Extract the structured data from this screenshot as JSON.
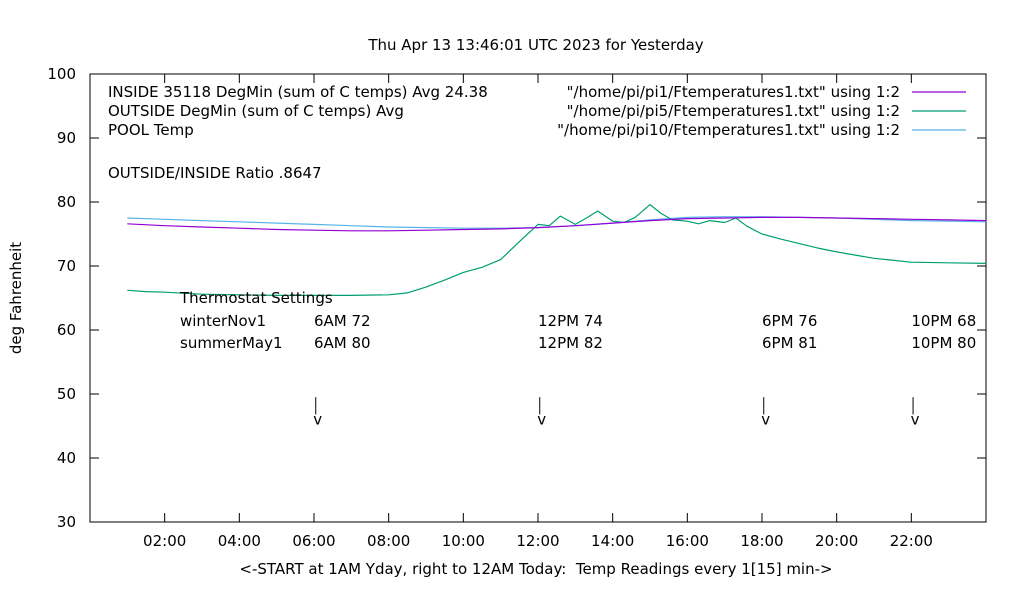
{
  "chart_data": {
    "type": "line",
    "title": "Thu Apr 13 13:46:01 UTC 2023 for Yesterday",
    "xlabel": "<-START at 1AM Yday, right to 12AM Today:  Temp Readings every 1[15] min->",
    "ylabel": "deg Fahrenheit",
    "xlim": [
      0.0,
      24.0
    ],
    "ylim": [
      30,
      100
    ],
    "x_ticks": [
      2,
      4,
      6,
      8,
      10,
      12,
      14,
      16,
      18,
      20,
      22
    ],
    "x_tick_labels": [
      "02:00",
      "04:00",
      "06:00",
      "08:00",
      "10:00",
      "12:00",
      "14:00",
      "16:00",
      "18:00",
      "20:00",
      "22:00"
    ],
    "y_ticks": [
      30,
      40,
      50,
      60,
      70,
      80,
      90,
      100
    ],
    "y_tick_labels": [
      "30",
      "40",
      "50",
      "60",
      "70",
      "80",
      "90",
      "100"
    ],
    "grid": false,
    "legend_position": "top-left",
    "legend": {
      "labels": [
        "INSIDE 35118 DegMin (sum of C temps) Avg 24.38",
        "OUTSIDE  DegMin (sum of C temps) Avg",
        "POOL Temp"
      ],
      "keys": [
        "\"/home/pi/pi1/Ftemperatures1.txt\" using 1:2",
        "\"/home/pi/pi5/Ftemperatures1.txt\" using 1:2",
        "\"/home/pi/pi10/Ftemperatures1.txt\" using 1:2"
      ],
      "ratio": "OUTSIDE/INSIDE Ratio .8647"
    },
    "series": [
      {
        "key": "\"/home/pi/pi1/Ftemperatures1.txt\" using 1:2",
        "color": "#9400d3",
        "x": [
          1.0,
          2.0,
          3.0,
          4.0,
          5.0,
          6.0,
          7.0,
          8.0,
          9.0,
          10.0,
          11.0,
          12.0,
          13.0,
          14.0,
          15.0,
          16.0,
          17.0,
          18.0,
          19.0,
          20.0,
          21.0,
          22.0,
          23.0,
          24.0
        ],
        "values": [
          76.6,
          76.3,
          76.1,
          75.9,
          75.7,
          75.6,
          75.5,
          75.5,
          75.6,
          75.7,
          75.8,
          76.0,
          76.3,
          76.7,
          77.1,
          77.4,
          77.5,
          77.6,
          77.6,
          77.5,
          77.4,
          77.3,
          77.2,
          77.1
        ]
      },
      {
        "key": "\"/home/pi/pi5/Ftemperatures1.txt\" using 1:2",
        "color": "#009e73",
        "x": [
          1.0,
          1.5,
          2.0,
          3.0,
          4.0,
          5.0,
          6.0,
          7.0,
          8.0,
          8.5,
          9.0,
          9.5,
          10.0,
          10.5,
          11.0,
          11.5,
          12.0,
          12.3,
          12.6,
          13.0,
          13.3,
          13.6,
          14.0,
          14.3,
          14.6,
          15.0,
          15.3,
          15.6,
          16.0,
          16.3,
          16.6,
          17.0,
          17.3,
          17.6,
          18.0,
          18.5,
          19.0,
          19.5,
          20.0,
          20.5,
          21.0,
          22.0,
          23.0,
          24.0
        ],
        "values": [
          66.2,
          66.0,
          65.9,
          65.6,
          65.5,
          65.4,
          65.4,
          65.4,
          65.5,
          65.8,
          66.7,
          67.8,
          69.0,
          69.8,
          71.0,
          73.8,
          76.5,
          76.3,
          77.8,
          76.5,
          77.5,
          78.6,
          77.0,
          76.8,
          77.6,
          79.6,
          78.2,
          77.2,
          77.0,
          76.6,
          77.1,
          76.8,
          77.5,
          76.2,
          75.0,
          74.2,
          73.5,
          72.8,
          72.2,
          71.7,
          71.2,
          70.6,
          70.5,
          70.4
        ]
      },
      {
        "key": "\"/home/pi/pi10/Ftemperatures1.txt\" using 1:2",
        "color": "#56b4e9",
        "x": [
          1.0,
          2.0,
          3.0,
          4.0,
          5.0,
          6.0,
          7.0,
          8.0,
          9.0,
          10.0,
          11.0,
          12.0,
          13.0,
          14.0,
          15.0,
          16.0,
          17.0,
          18.0,
          19.0,
          20.0,
          21.0,
          22.0,
          23.0,
          24.0
        ],
        "values": [
          77.5,
          77.3,
          77.1,
          76.9,
          76.7,
          76.5,
          76.3,
          76.1,
          76.0,
          75.9,
          75.9,
          76.0,
          76.3,
          76.7,
          77.2,
          77.6,
          77.7,
          77.7,
          77.6,
          77.5,
          77.3,
          77.1,
          77.0,
          76.9
        ]
      }
    ],
    "annotations": {
      "thermostat_title": "Thermostat Settings",
      "rows": [
        {
          "label": "winterNov1",
          "settings": [
            "6AM 72",
            "12PM 74",
            "6PM 76",
            "10PM 68"
          ]
        },
        {
          "label": "summerMay1",
          "settings": [
            "6AM 80",
            "12PM 82",
            "6PM 81",
            "10PM 80"
          ]
        }
      ],
      "setting_x": [
        6.0,
        12.0,
        18.0,
        22.0
      ],
      "arrow_x": [
        6.1,
        12.1,
        18.1,
        22.1
      ],
      "arrow_y_top": 49.5,
      "arrow_y_bottom": 46.5,
      "arrow_glyph": "v"
    }
  }
}
